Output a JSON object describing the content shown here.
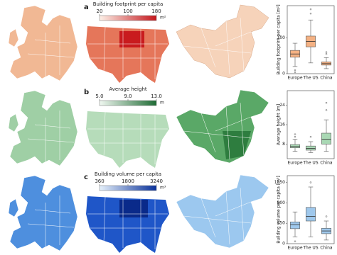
{
  "panels": [
    {
      "label": "a",
      "colorbar": {
        "title": "Building footprint per capita",
        "unit": "m²",
        "lim": [
          20,
          180
        ],
        "ticks": [
          20,
          100,
          180
        ],
        "colors": [
          "#fdf1e8",
          "#c4161c"
        ]
      }
    },
    {
      "label": "b",
      "colorbar": {
        "title": "Average height",
        "unit": "m",
        "lim": [
          5,
          13
        ],
        "ticks": [
          {
            "value": 5,
            "label": "5.0"
          },
          {
            "value": 9,
            "label": "9.0"
          },
          {
            "value": 13,
            "label": "13.0"
          }
        ],
        "colors": [
          "#f1f8f1",
          "#1e6b34"
        ]
      }
    },
    {
      "label": "c",
      "colorbar": {
        "title": "Building volume per capita",
        "unit": "m³",
        "lim": [
          360,
          3240
        ],
        "ticks": [
          360,
          1800,
          3240
        ],
        "colors": [
          "#e6f1fb",
          "#08309a"
        ]
      }
    }
  ],
  "chart_data": [
    {
      "type": "box",
      "ylabel": "Building footprint per capita [m²]",
      "categories": [
        "Europe",
        "The US",
        "China"
      ],
      "color": "#f4b183",
      "ylim": [
        0,
        190
      ],
      "yticks": [
        0,
        100
      ],
      "boxes": [
        {
          "whislo": 20,
          "q1": 46,
          "med": 55,
          "q3": 65,
          "whishi": 85,
          "fliers": [
            10,
            4
          ]
        },
        {
          "whislo": 30,
          "q1": 75,
          "med": 90,
          "q3": 105,
          "whishi": 150,
          "fliers": [
            168,
            180
          ]
        },
        {
          "whislo": 14,
          "q1": 24,
          "med": 28,
          "q3": 33,
          "whishi": 45,
          "fliers": [
            55,
            60
          ]
        }
      ]
    },
    {
      "type": "box",
      "ylabel": "Average height [m]",
      "categories": [
        "Europe",
        "The US",
        "China"
      ],
      "color": "#a9d8b4",
      "ylim": [
        2,
        30
      ],
      "yticks": [
        8,
        16,
        24
      ],
      "boxes": [
        {
          "whislo": 5,
          "q1": 6.5,
          "med": 7,
          "q3": 7.8,
          "whishi": 10,
          "fliers": [
            11,
            12
          ]
        },
        {
          "whislo": 4.5,
          "q1": 5.5,
          "med": 6.2,
          "q3": 7.2,
          "whishi": 9,
          "fliers": [
            11
          ]
        },
        {
          "whislo": 5,
          "q1": 8,
          "med": 10,
          "q3": 12.5,
          "whishi": 18,
          "fliers": [
            22,
            25
          ]
        }
      ]
    },
    {
      "type": "box",
      "ylabel": "Building volume per capita [m³]",
      "categories": [
        "Europe",
        "The US",
        "China"
      ],
      "color": "#9fc8ec",
      "ylim": [
        0,
        1500
      ],
      "yticks": [
        0,
        450,
        900,
        1350
      ],
      "boxes": [
        {
          "whislo": 150,
          "q1": 330,
          "med": 420,
          "q3": 480,
          "whishi": 700,
          "fliers": [
            50
          ]
        },
        {
          "whislo": 150,
          "q1": 500,
          "med": 600,
          "q3": 800,
          "whishi": 1250,
          "fliers": [
            1350
          ]
        },
        {
          "whislo": 80,
          "q1": 220,
          "med": 280,
          "q3": 340,
          "whishi": 500,
          "fliers": [
            600
          ]
        }
      ]
    }
  ]
}
